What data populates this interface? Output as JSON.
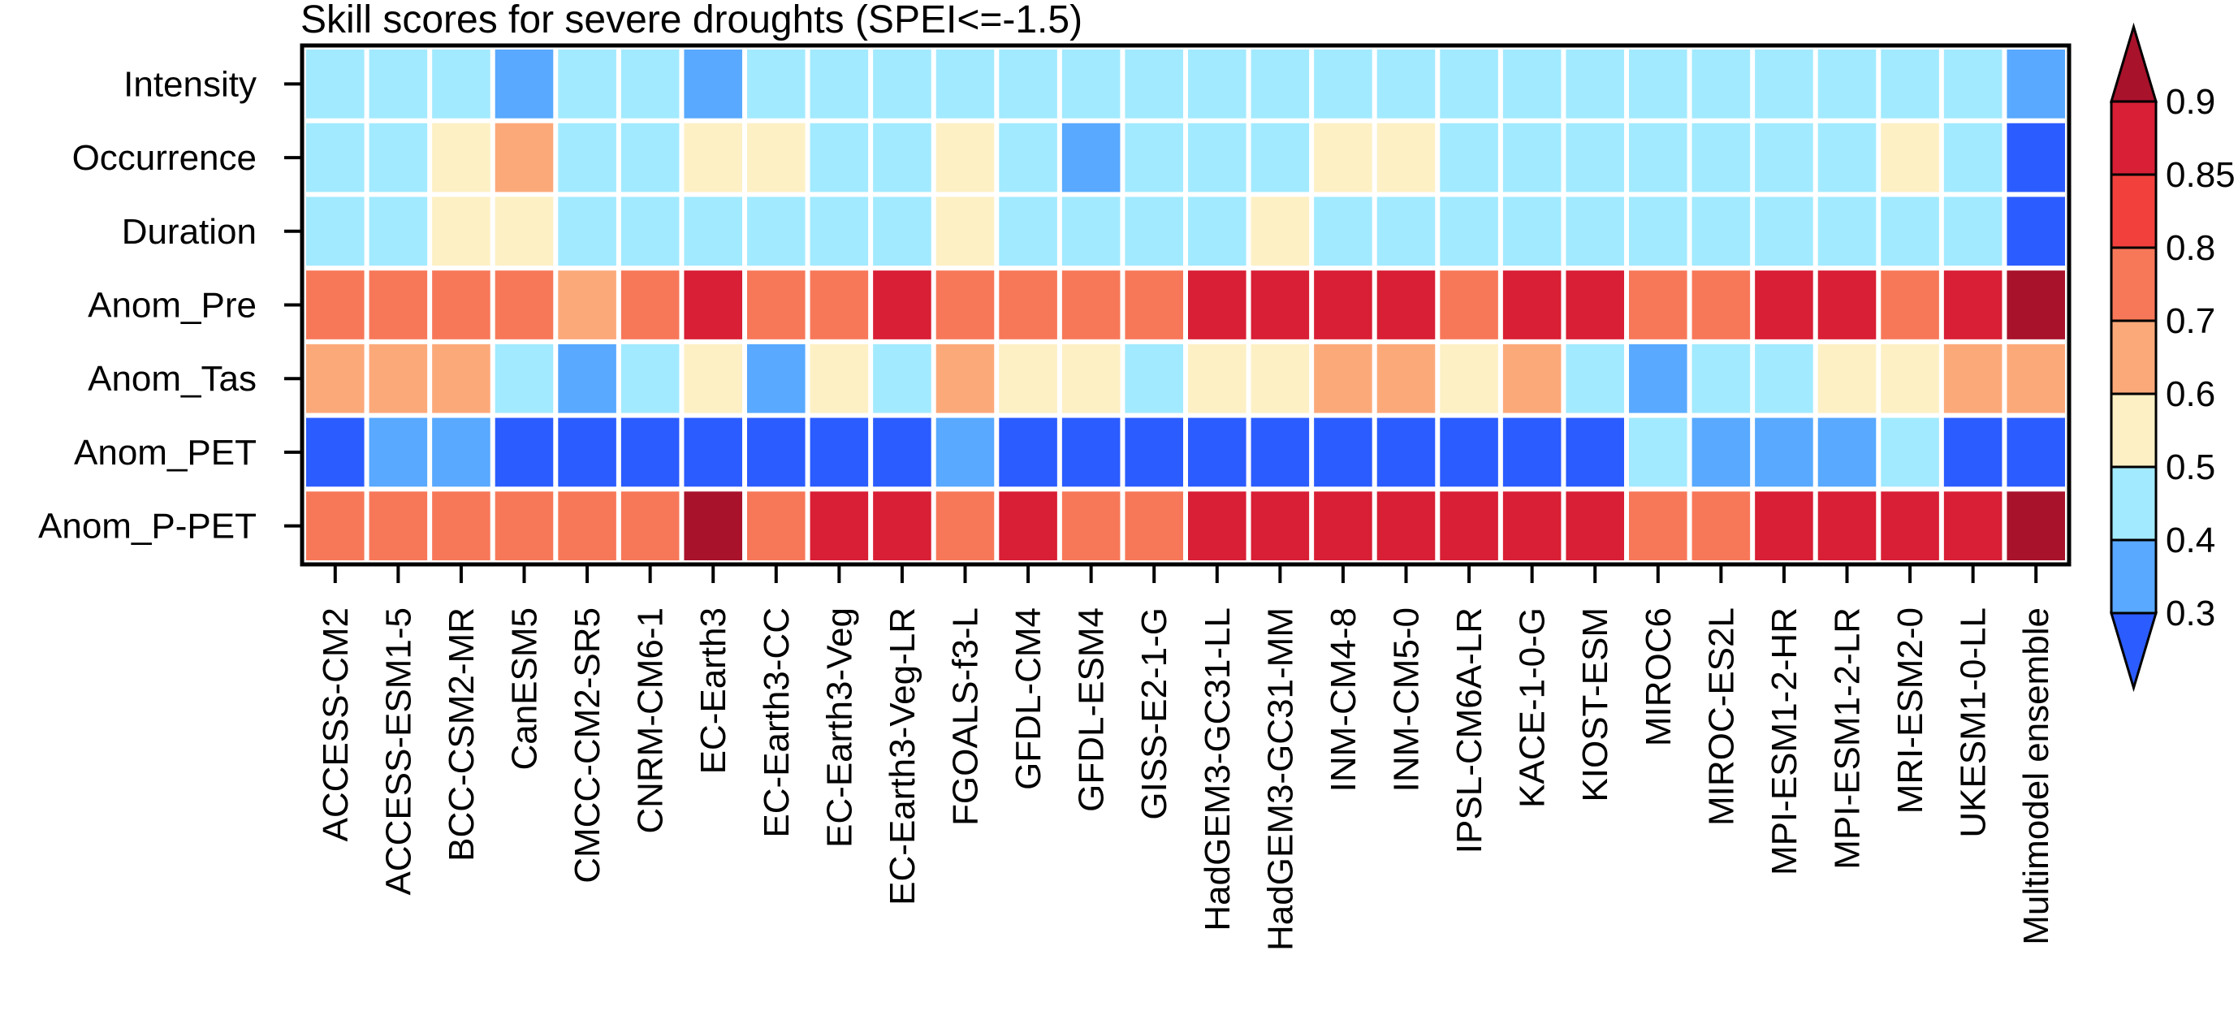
{
  "chart_data": {
    "type": "heatmap",
    "title": "Skill scores for severe droughts (SPEI<=-1.5)",
    "rows": [
      "Intensity",
      "Occurrence",
      "Duration",
      "Anom_Pre",
      "Anom_Tas",
      "Anom_PET",
      "Anom_P-PET"
    ],
    "columns": [
      "ACCESS-CM2",
      "ACCESS-ESM1-5",
      "BCC-CSM2-MR",
      "CanESM5",
      "CMCC-CM2-SR5",
      "CNRM-CM6-1",
      "EC-Earth3",
      "EC-Earth3-CC",
      "EC-Earth3-Veg",
      "EC-Earth3-Veg-LR",
      "FGOALS-f3-L",
      "GFDL-CM4",
      "GFDL-ESM4",
      "GISS-E2-1-G",
      "HadGEM3-GC31-LL",
      "HadGEM3-GC31-MM",
      "INM-CM4-8",
      "INM-CM5-0",
      "IPSL-CM6A-LR",
      "KACE-1-0-G",
      "KIOST-ESM",
      "MIROC6",
      "MIROC-ES2L",
      "MPI-ESM1-2-HR",
      "MPI-ESM1-2-LR",
      "MRI-ESM2-0",
      "UKESM1-0-LL",
      "Multimodel ensemble"
    ],
    "values": [
      [
        0.45,
        0.45,
        0.45,
        0.35,
        0.45,
        0.45,
        0.35,
        0.45,
        0.45,
        0.45,
        0.45,
        0.45,
        0.45,
        0.45,
        0.45,
        0.45,
        0.45,
        0.45,
        0.45,
        0.45,
        0.45,
        0.45,
        0.45,
        0.45,
        0.45,
        0.45,
        0.45,
        0.35
      ],
      [
        0.45,
        0.45,
        0.55,
        0.65,
        0.45,
        0.45,
        0.55,
        0.55,
        0.45,
        0.45,
        0.55,
        0.45,
        0.35,
        0.45,
        0.45,
        0.45,
        0.55,
        0.55,
        0.45,
        0.45,
        0.45,
        0.45,
        0.45,
        0.45,
        0.45,
        0.55,
        0.45,
        0.25
      ],
      [
        0.45,
        0.45,
        0.55,
        0.55,
        0.45,
        0.45,
        0.45,
        0.45,
        0.45,
        0.45,
        0.55,
        0.45,
        0.45,
        0.45,
        0.45,
        0.55,
        0.45,
        0.45,
        0.45,
        0.45,
        0.45,
        0.45,
        0.45,
        0.45,
        0.45,
        0.45,
        0.45,
        0.25
      ],
      [
        0.75,
        0.75,
        0.75,
        0.75,
        0.65,
        0.75,
        0.85,
        0.75,
        0.75,
        0.85,
        0.75,
        0.75,
        0.75,
        0.75,
        0.85,
        0.85,
        0.85,
        0.85,
        0.75,
        0.85,
        0.85,
        0.75,
        0.75,
        0.85,
        0.85,
        0.75,
        0.85,
        0.95
      ],
      [
        0.65,
        0.65,
        0.65,
        0.45,
        0.35,
        0.45,
        0.55,
        0.35,
        0.55,
        0.45,
        0.65,
        0.55,
        0.55,
        0.45,
        0.55,
        0.55,
        0.65,
        0.65,
        0.55,
        0.65,
        0.45,
        0.35,
        0.45,
        0.45,
        0.55,
        0.55,
        0.65,
        0.65
      ],
      [
        0.25,
        0.35,
        0.35,
        0.25,
        0.25,
        0.25,
        0.25,
        0.25,
        0.25,
        0.25,
        0.35,
        0.25,
        0.25,
        0.25,
        0.25,
        0.25,
        0.25,
        0.25,
        0.25,
        0.25,
        0.25,
        0.45,
        0.35,
        0.35,
        0.35,
        0.45,
        0.25,
        0.25
      ],
      [
        0.75,
        0.75,
        0.75,
        0.75,
        0.75,
        0.75,
        0.95,
        0.75,
        0.85,
        0.85,
        0.75,
        0.85,
        0.75,
        0.75,
        0.85,
        0.85,
        0.85,
        0.85,
        0.85,
        0.85,
        0.85,
        0.75,
        0.75,
        0.85,
        0.85,
        0.85,
        0.85,
        0.95
      ]
    ],
    "colorbar": {
      "levels": [
        "0.3",
        "0.4",
        "0.5",
        "0.6",
        "0.7",
        "0.8",
        "0.85",
        "0.9"
      ],
      "boundaries": [
        0.3,
        0.4,
        0.5,
        0.6,
        0.7,
        0.8,
        0.85,
        0.9
      ],
      "colors": [
        "#2b5cff",
        "#58a9ff",
        "#a2eaff",
        "#fdf0c4",
        "#fca97a",
        "#f77859",
        "#f2413d",
        "#d81f35",
        "#a8122b"
      ],
      "extend": "both",
      "placement": "right"
    }
  }
}
